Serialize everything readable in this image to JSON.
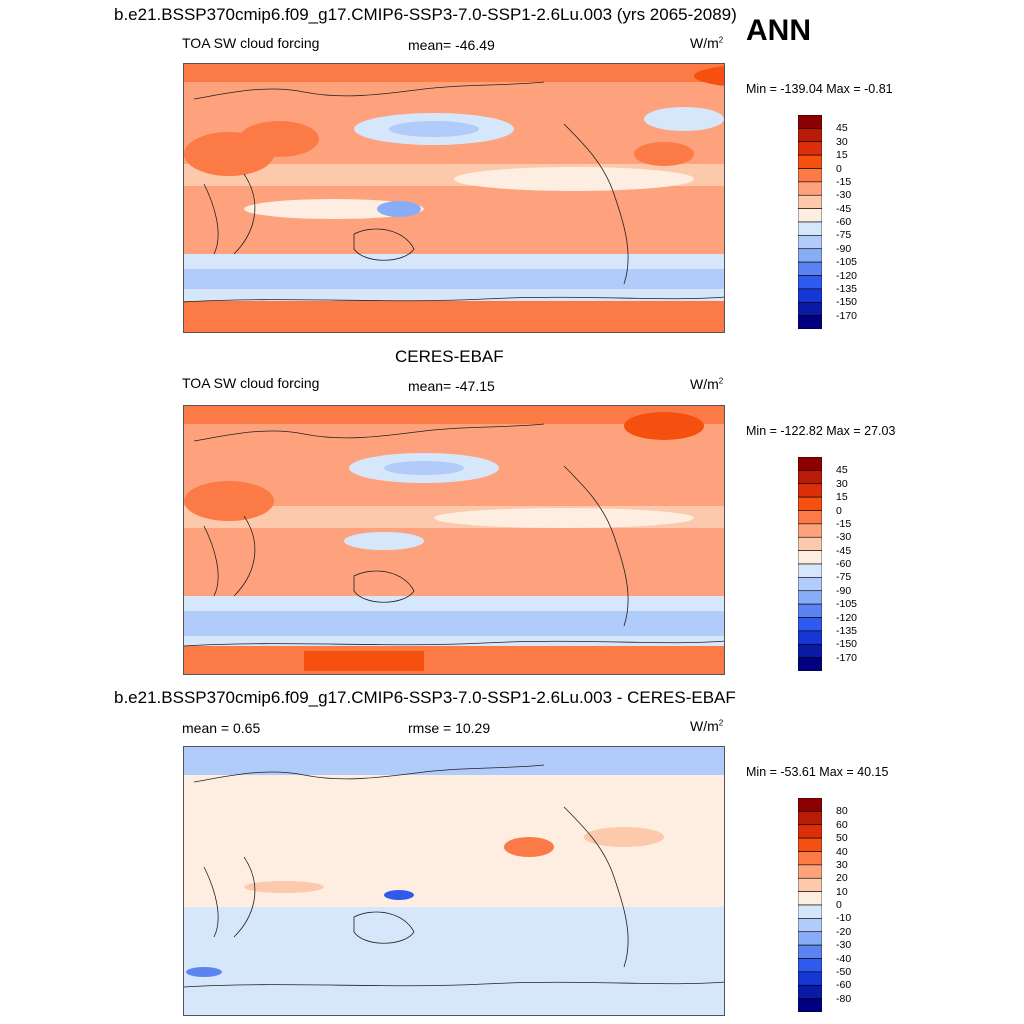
{
  "panels": [
    {
      "title": "b.e21.BSSP370cmip6.f09_g17.CMIP6-SSP3-7.0-SSP1-2.6Lu.003 (yrs 2065-2089)",
      "left_label": "TOA SW cloud forcing",
      "center_label": "mean= -46.49",
      "units": "W/m",
      "units_sup": "2",
      "minmax": "Min = -139.04 Max =  -0.81",
      "colorbar": {
        "labels": [
          "45",
          "30",
          "15",
          "0",
          "-15",
          "-30",
          "-45",
          "-60",
          "-75",
          "-90",
          "-105",
          "-120",
          "-135",
          "-150",
          "-170"
        ],
        "colors": [
          "#8b0000",
          "#b81b06",
          "#dc2e0a",
          "#f5500f",
          "#fc7a45",
          "#fda27c",
          "#fdc9ad",
          "#feeee1",
          "#d6e6fb",
          "#b1cbfa",
          "#88adf6",
          "#5b84f1",
          "#2e5bed",
          "#1637d6",
          "#0a1aa5",
          "#000080"
        ]
      }
    },
    {
      "title": "CERES-EBAF",
      "left_label": "TOA SW cloud forcing",
      "center_label": "mean= -47.15",
      "units": "W/m",
      "units_sup": "2",
      "minmax": "Min = -122.82 Max =  27.03",
      "colorbar": {
        "labels": [
          "45",
          "30",
          "15",
          "0",
          "-15",
          "-30",
          "-45",
          "-60",
          "-75",
          "-90",
          "-105",
          "-120",
          "-135",
          "-150",
          "-170"
        ],
        "colors": [
          "#8b0000",
          "#b81b06",
          "#dc2e0a",
          "#f5500f",
          "#fc7a45",
          "#fda27c",
          "#fdc9ad",
          "#feeee1",
          "#d6e6fb",
          "#b1cbfa",
          "#88adf6",
          "#5b84f1",
          "#2e5bed",
          "#1637d6",
          "#0a1aa5",
          "#000080"
        ]
      }
    },
    {
      "title": "b.e21.BSSP370cmip6.f09_g17.CMIP6-SSP3-7.0-SSP1-2.6Lu.003 - CERES-EBAF",
      "left_label": "mean =   0.65",
      "center_label": "rmse =  10.29",
      "units": "W/m",
      "units_sup": "2",
      "minmax": "Min = -53.61 Max =  40.15",
      "colorbar": {
        "labels": [
          "80",
          "60",
          "50",
          "40",
          "30",
          "20",
          "10",
          "0",
          "-10",
          "-20",
          "-30",
          "-40",
          "-50",
          "-60",
          "-80"
        ],
        "colors": [
          "#8b0000",
          "#b81b06",
          "#dc2e0a",
          "#f5500f",
          "#fc7a45",
          "#fda27c",
          "#fdc9ad",
          "#feeee1",
          "#d6e6fb",
          "#b1cbfa",
          "#88adf6",
          "#5b84f1",
          "#2e5bed",
          "#1637d6",
          "#0a1aa5",
          "#000080"
        ]
      }
    }
  ],
  "season": "ANN",
  "chart_data": [
    {
      "type": "heatmap",
      "title": "b.e21.BSSP370cmip6.f09_g17.CMIP6-SSP3-7.0-SSP1-2.6Lu.003 (yrs 2065-2089)",
      "subtitle": "TOA SW cloud forcing",
      "mean": -46.49,
      "min": -139.04,
      "max": -0.81,
      "units": "W/m2",
      "contour_levels": [
        -170,
        -150,
        -135,
        -120,
        -105,
        -90,
        -75,
        -60,
        -45,
        -30,
        -15,
        0,
        15,
        30,
        45
      ]
    },
    {
      "type": "heatmap",
      "title": "CERES-EBAF",
      "subtitle": "TOA SW cloud forcing",
      "mean": -47.15,
      "min": -122.82,
      "max": 27.03,
      "units": "W/m2",
      "contour_levels": [
        -170,
        -150,
        -135,
        -120,
        -105,
        -90,
        -75,
        -60,
        -45,
        -30,
        -15,
        0,
        15,
        30,
        45
      ]
    },
    {
      "type": "heatmap",
      "title": "b.e21.BSSP370cmip6.f09_g17.CMIP6-SSP3-7.0-SSP1-2.6Lu.003 - CERES-EBAF",
      "mean": 0.65,
      "rmse": 10.29,
      "min": -53.61,
      "max": 40.15,
      "units": "W/m2",
      "contour_levels": [
        -80,
        -60,
        -50,
        -40,
        -30,
        -20,
        -10,
        0,
        10,
        20,
        30,
        40,
        50,
        60,
        80
      ]
    }
  ]
}
